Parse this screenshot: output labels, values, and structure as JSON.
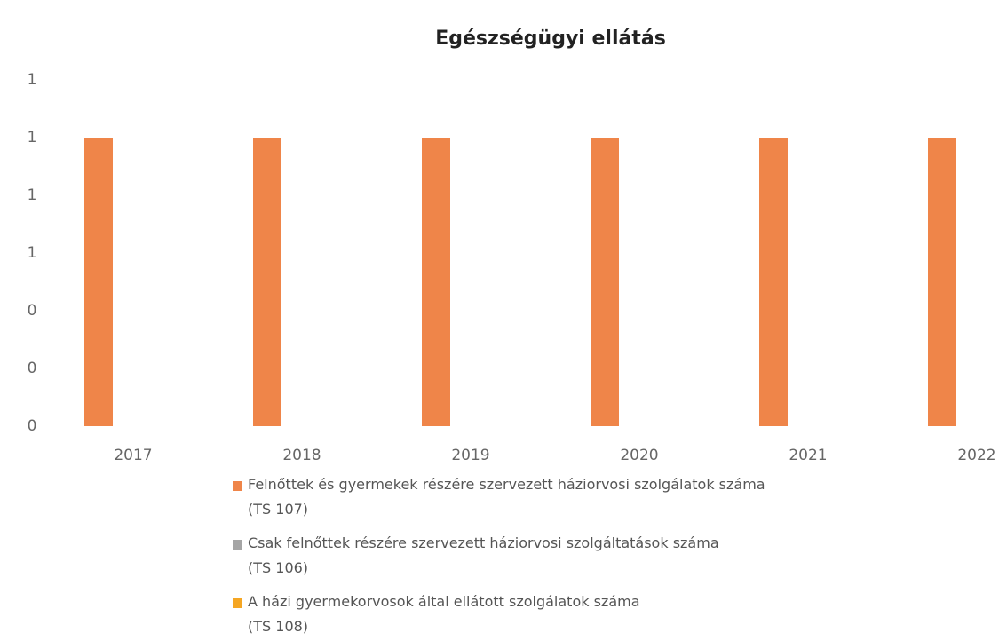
{
  "chart_data": {
    "type": "bar",
    "title": "Egészségügyi ellátás",
    "categories": [
      "2017",
      "2018",
      "2019",
      "2020",
      "2021",
      "2022"
    ],
    "series": [
      {
        "name": "Felnőttek és gyermekek részére szervezett háziorvosi szolgálatok száma\n(TS 107)",
        "color": "#ef8549",
        "values": [
          1,
          1,
          1,
          1,
          1,
          1
        ]
      },
      {
        "name": "Csak felnőttek részére szervezett háziorvosi szolgáltatások száma\n(TS 106)",
        "color": "#a5a5a5",
        "values": [
          0,
          0,
          0,
          0,
          0,
          0
        ]
      },
      {
        "name": "A házi gyermekorvosok által ellátott szolgálatok száma\n(TS 108)",
        "color": "#f5a623",
        "values": [
          0,
          0,
          0,
          0,
          0,
          0
        ]
      }
    ],
    "ylim": [
      0,
      1.2
    ],
    "yticks": [
      {
        "value": 0,
        "label": "0"
      },
      {
        "value": 0.2,
        "label": "0"
      },
      {
        "value": 0.4,
        "label": "0"
      },
      {
        "value": 0.6,
        "label": "1"
      },
      {
        "value": 0.8,
        "label": "1"
      },
      {
        "value": 1,
        "label": "1"
      },
      {
        "value": 1.2,
        "label": "1"
      }
    ]
  }
}
